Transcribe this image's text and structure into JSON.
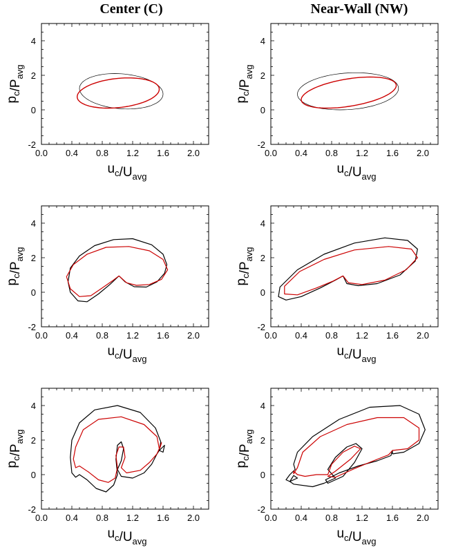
{
  "column_titles": [
    "Center (C)",
    "Near-Wall (NW)"
  ],
  "chart_data": [
    {
      "type": "line",
      "column": "Center (C)",
      "row": 1,
      "xlabel": "u_c/U_avg",
      "ylabel": "p_c/P_avg",
      "xlim": [
        0.0,
        2.2
      ],
      "ylim": [
        -2,
        5
      ],
      "xticks": [
        "0.0",
        "0.4",
        "0.8",
        "1.2",
        "1.6",
        "2.0"
      ],
      "yticks": [
        "-2",
        "0",
        "2",
        "4"
      ],
      "series": [
        {
          "color": "#000000",
          "width": 0.7,
          "loop": {
            "cx": 1.04,
            "cy": 0.98,
            "ax": 0.55,
            "ay": 1.0,
            "phase": 0.55,
            "xmin": 0.5,
            "xmax": 1.6,
            "ymin": 0.05,
            "ymax": 2.1
          }
        },
        {
          "color": "#cc0000",
          "width": 1.4,
          "loop": {
            "xmin": 0.47,
            "xmax": 1.55,
            "ymin": 0.1,
            "ymax": 1.85,
            "phase": 0.42
          }
        }
      ]
    },
    {
      "type": "line",
      "column": "Near-Wall (NW)",
      "row": 1,
      "xlabel": "u_c/U_avg",
      "ylabel": "p_c/P_avg",
      "xlim": [
        0.0,
        2.2
      ],
      "ylim": [
        -2,
        5
      ],
      "xticks": [
        "0.0",
        "0.4",
        "0.8",
        "1.2",
        "1.6",
        "2.0"
      ],
      "yticks": [
        "-2",
        "0",
        "2",
        "4"
      ],
      "series": [
        {
          "color": "#000000",
          "width": 0.7,
          "loop": {
            "xmin": 0.35,
            "xmax": 1.68,
            "ymin": 0.0,
            "ymax": 2.15,
            "phase": 0.45
          }
        },
        {
          "color": "#cc0000",
          "width": 1.4,
          "loop": {
            "xmin": 0.4,
            "xmax": 1.65,
            "ymin": 0.1,
            "ymax": 1.9,
            "phase": 0.35
          }
        }
      ]
    },
    {
      "type": "line",
      "column": "Center (C)",
      "row": 2,
      "xlabel": "u_c/U_avg",
      "ylabel": "p_c/P_avg",
      "xlim": [
        0.0,
        2.2
      ],
      "ylim": [
        -2,
        5
      ],
      "xticks": [
        "0.0",
        "0.4",
        "0.8",
        "1.2",
        "1.6",
        "2.0"
      ],
      "yticks": [
        "-2",
        "0",
        "2",
        "4"
      ],
      "series": [
        {
          "color": "#000000",
          "width": 1.2,
          "points": [
            [
              1.02,
              0.95
            ],
            [
              1.1,
              0.6
            ],
            [
              1.22,
              0.32
            ],
            [
              1.38,
              0.3
            ],
            [
              1.52,
              0.6
            ],
            [
              1.62,
              1.1
            ],
            [
              1.65,
              1.6
            ],
            [
              1.6,
              2.2
            ],
            [
              1.45,
              2.75
            ],
            [
              1.2,
              3.1
            ],
            [
              0.95,
              3.05
            ],
            [
              0.7,
              2.7
            ],
            [
              0.5,
              2.1
            ],
            [
              0.38,
              1.4
            ],
            [
              0.35,
              0.6
            ],
            [
              0.38,
              0.0
            ],
            [
              0.48,
              -0.5
            ],
            [
              0.6,
              -0.55
            ],
            [
              0.75,
              -0.1
            ],
            [
              0.9,
              0.45
            ],
            [
              1.02,
              0.95
            ]
          ]
        },
        {
          "color": "#cc0000",
          "width": 1.2,
          "points": [
            [
              1.02,
              0.95
            ],
            [
              1.12,
              0.55
            ],
            [
              1.25,
              0.4
            ],
            [
              1.42,
              0.45
            ],
            [
              1.58,
              0.75
            ],
            [
              1.66,
              1.3
            ],
            [
              1.6,
              1.9
            ],
            [
              1.42,
              2.4
            ],
            [
              1.15,
              2.65
            ],
            [
              0.85,
              2.6
            ],
            [
              0.6,
              2.2
            ],
            [
              0.42,
              1.6
            ],
            [
              0.33,
              0.9
            ],
            [
              0.38,
              0.2
            ],
            [
              0.5,
              -0.25
            ],
            [
              0.65,
              -0.2
            ],
            [
              0.8,
              0.25
            ],
            [
              0.93,
              0.65
            ],
            [
              1.02,
              0.95
            ]
          ]
        }
      ]
    },
    {
      "type": "line",
      "column": "Near-Wall (NW)",
      "row": 2,
      "xlabel": "u_c/U_avg",
      "ylabel": "p_c/P_avg",
      "xlim": [
        0.0,
        2.2
      ],
      "ylim": [
        -2,
        5
      ],
      "xticks": [
        "0.0",
        "0.4",
        "0.8",
        "1.2",
        "1.6",
        "2.0"
      ],
      "yticks": [
        "-2",
        "0",
        "2",
        "4"
      ],
      "series": [
        {
          "color": "#000000",
          "width": 1.2,
          "points": [
            [
              0.95,
              0.95
            ],
            [
              1.0,
              0.5
            ],
            [
              1.15,
              0.38
            ],
            [
              1.4,
              0.5
            ],
            [
              1.7,
              1.0
            ],
            [
              1.9,
              1.8
            ],
            [
              1.93,
              2.5
            ],
            [
              1.8,
              3.0
            ],
            [
              1.5,
              3.15
            ],
            [
              1.1,
              2.85
            ],
            [
              0.7,
              2.2
            ],
            [
              0.35,
              1.3
            ],
            [
              0.12,
              0.3
            ],
            [
              0.1,
              -0.25
            ],
            [
              0.2,
              -0.45
            ],
            [
              0.4,
              -0.25
            ],
            [
              0.65,
              0.25
            ],
            [
              0.85,
              0.7
            ],
            [
              0.95,
              0.95
            ]
          ]
        },
        {
          "color": "#cc0000",
          "width": 1.2,
          "points": [
            [
              0.95,
              0.95
            ],
            [
              1.02,
              0.55
            ],
            [
              1.2,
              0.45
            ],
            [
              1.5,
              0.7
            ],
            [
              1.78,
              1.3
            ],
            [
              1.93,
              2.0
            ],
            [
              1.85,
              2.5
            ],
            [
              1.55,
              2.65
            ],
            [
              1.1,
              2.45
            ],
            [
              0.7,
              1.9
            ],
            [
              0.38,
              1.2
            ],
            [
              0.18,
              0.35
            ],
            [
              0.18,
              -0.1
            ],
            [
              0.35,
              -0.15
            ],
            [
              0.6,
              0.25
            ],
            [
              0.82,
              0.65
            ],
            [
              0.95,
              0.95
            ]
          ]
        }
      ]
    },
    {
      "type": "line",
      "column": "Center (C)",
      "row": 3,
      "xlabel": "u_c/U_avg",
      "ylabel": "p_c/P_avg",
      "xlim": [
        0.0,
        2.2
      ],
      "ylim": [
        -2,
        5
      ],
      "xticks": [
        "0.0",
        "0.4",
        "0.8",
        "1.2",
        "1.6",
        "2.0"
      ],
      "yticks": [
        "-2",
        "0",
        "2",
        "4"
      ],
      "series": [
        {
          "color": "#000000",
          "width": 1.2,
          "points": [
            [
              1.55,
              1.4
            ],
            [
              1.57,
              1.9
            ],
            [
              1.5,
              2.7
            ],
            [
              1.3,
              3.6
            ],
            [
              1.0,
              4.0
            ],
            [
              0.7,
              3.75
            ],
            [
              0.5,
              3.0
            ],
            [
              0.4,
              2.0
            ],
            [
              0.38,
              1.0
            ],
            [
              0.4,
              0.1
            ],
            [
              0.45,
              -0.15
            ],
            [
              0.5,
              0.0
            ],
            [
              0.6,
              -0.3
            ],
            [
              0.72,
              -0.8
            ],
            [
              0.85,
              -1.0
            ],
            [
              0.95,
              -0.6
            ],
            [
              1.0,
              0.0
            ],
            [
              0.98,
              0.9
            ],
            [
              1.0,
              1.7
            ],
            [
              1.05,
              1.9
            ],
            [
              1.08,
              1.5
            ],
            [
              1.05,
              0.8
            ],
            [
              1.0,
              0.3
            ],
            [
              1.05,
              -0.1
            ],
            [
              1.2,
              -0.2
            ],
            [
              1.35,
              0.1
            ],
            [
              1.45,
              0.6
            ],
            [
              1.52,
              1.2
            ],
            [
              1.55,
              1.4
            ],
            [
              1.62,
              1.7
            ],
            [
              1.6,
              1.3
            ],
            [
              1.55,
              1.4
            ]
          ]
        },
        {
          "color": "#cc0000",
          "width": 1.2,
          "points": [
            [
              1.55,
              1.5
            ],
            [
              1.52,
              2.2
            ],
            [
              1.35,
              2.9
            ],
            [
              1.05,
              3.35
            ],
            [
              0.75,
              3.2
            ],
            [
              0.55,
              2.6
            ],
            [
              0.45,
              1.6
            ],
            [
              0.42,
              0.9
            ],
            [
              0.45,
              0.4
            ],
            [
              0.5,
              0.5
            ],
            [
              0.62,
              0.15
            ],
            [
              0.75,
              -0.3
            ],
            [
              0.88,
              -0.45
            ],
            [
              0.97,
              -0.2
            ],
            [
              1.0,
              0.4
            ],
            [
              0.98,
              1.1
            ],
            [
              1.02,
              1.6
            ],
            [
              1.08,
              1.6
            ],
            [
              1.1,
              1.0
            ],
            [
              1.05,
              0.4
            ],
            [
              1.12,
              0.1
            ],
            [
              1.3,
              0.25
            ],
            [
              1.42,
              0.7
            ],
            [
              1.52,
              1.2
            ],
            [
              1.55,
              1.5
            ],
            [
              1.58,
              1.85
            ],
            [
              1.56,
              1.55
            ]
          ]
        }
      ]
    },
    {
      "type": "line",
      "column": "Near-Wall (NW)",
      "row": 3,
      "xlabel": "u_c/U_avg",
      "ylabel": "p_c/P_avg",
      "xlim": [
        0.0,
        2.2
      ],
      "ylim": [
        -2,
        5
      ],
      "xticks": [
        "0.0",
        "0.4",
        "0.8",
        "1.2",
        "1.6",
        "2.0"
      ],
      "yticks": [
        "-2",
        "0",
        "2",
        "4"
      ],
      "series": [
        {
          "color": "#000000",
          "width": 1.2,
          "points": [
            [
              1.6,
              1.2
            ],
            [
              1.75,
              1.3
            ],
            [
              1.95,
              1.8
            ],
            [
              2.03,
              2.6
            ],
            [
              1.95,
              3.5
            ],
            [
              1.7,
              4.0
            ],
            [
              1.3,
              3.9
            ],
            [
              0.9,
              3.2
            ],
            [
              0.55,
              2.2
            ],
            [
              0.35,
              1.3
            ],
            [
              0.3,
              0.6
            ],
            [
              0.32,
              0.3
            ],
            [
              0.25,
              0.0
            ],
            [
              0.2,
              -0.3
            ],
            [
              0.25,
              -0.4
            ],
            [
              0.35,
              -0.2
            ],
            [
              0.3,
              -0.05
            ],
            [
              0.25,
              -0.4
            ],
            [
              0.3,
              -0.55
            ],
            [
              0.55,
              -0.7
            ],
            [
              0.7,
              -0.5
            ],
            [
              0.85,
              -0.2
            ],
            [
              0.75,
              0.3
            ],
            [
              0.85,
              1.0
            ],
            [
              1.0,
              1.6
            ],
            [
              1.12,
              1.8
            ],
            [
              1.2,
              1.5
            ],
            [
              1.1,
              0.7
            ],
            [
              0.95,
              -0.1
            ],
            [
              0.75,
              -0.5
            ],
            [
              0.72,
              -0.3
            ],
            [
              0.9,
              0.1
            ],
            [
              1.15,
              0.5
            ],
            [
              1.4,
              0.8
            ],
            [
              1.58,
              1.1
            ],
            [
              1.6,
              1.4
            ],
            [
              1.6,
              1.2
            ]
          ]
        },
        {
          "color": "#cc0000",
          "width": 1.2,
          "points": [
            [
              1.6,
              1.4
            ],
            [
              1.8,
              1.5
            ],
            [
              1.95,
              2.0
            ],
            [
              1.95,
              2.7
            ],
            [
              1.75,
              3.3
            ],
            [
              1.4,
              3.3
            ],
            [
              1.0,
              2.9
            ],
            [
              0.65,
              2.2
            ],
            [
              0.42,
              1.3
            ],
            [
              0.35,
              0.4
            ],
            [
              0.3,
              0.05
            ],
            [
              0.3,
              0.2
            ],
            [
              0.35,
              0.0
            ],
            [
              0.45,
              -0.1
            ],
            [
              0.6,
              0.0
            ],
            [
              0.75,
              0.0
            ],
            [
              0.8,
              0.6
            ],
            [
              0.95,
              1.3
            ],
            [
              1.1,
              1.65
            ],
            [
              1.18,
              1.5
            ],
            [
              1.05,
              0.9
            ],
            [
              0.85,
              0.2
            ],
            [
              0.75,
              -0.1
            ],
            [
              0.85,
              -0.15
            ],
            [
              1.1,
              0.35
            ],
            [
              1.35,
              0.8
            ],
            [
              1.55,
              1.15
            ],
            [
              1.6,
              1.4
            ]
          ]
        }
      ]
    }
  ]
}
